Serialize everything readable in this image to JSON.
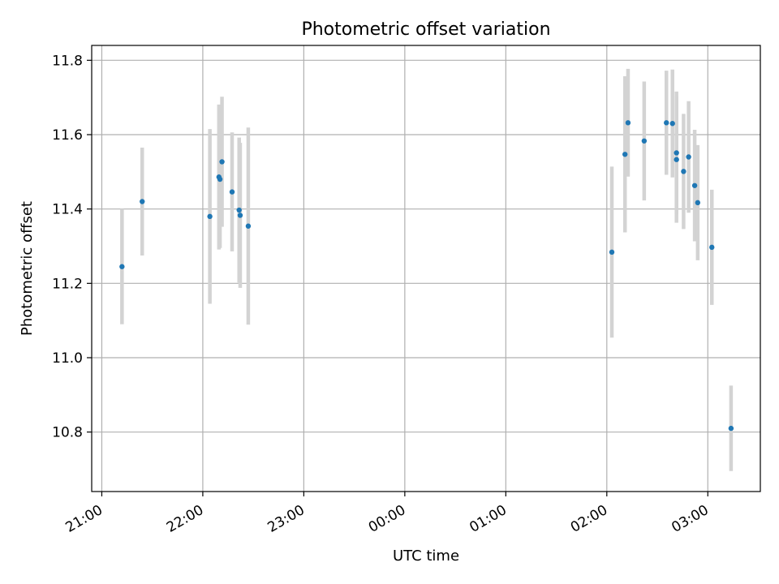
{
  "chart_data": {
    "type": "scatter",
    "title": "Photometric offset variation",
    "xlabel": "UTC time",
    "ylabel": "Photometric offset",
    "x_ticks": [
      "21:00",
      "22:00",
      "23:00",
      "00:00",
      "01:00",
      "02:00",
      "03:00"
    ],
    "x_tick_hours": [
      0,
      1,
      2,
      3,
      4,
      5,
      6
    ],
    "x_range_hours": [
      -0.1,
      6.52
    ],
    "y_ticks": [
      "10.8",
      "11.0",
      "11.2",
      "11.4",
      "11.6",
      "11.8"
    ],
    "y_tick_values": [
      10.8,
      11.0,
      11.2,
      11.4,
      11.6,
      11.8
    ],
    "ylim": [
      10.64,
      11.84
    ],
    "grid": true,
    "colors": {
      "point": "#1f77b4",
      "errorbar": "#d3d3d3",
      "grid": "#b0b0b0"
    },
    "points": [
      {
        "t": 0.2,
        "y": 11.245,
        "err": 0.155
      },
      {
        "t": 0.4,
        "y": 11.42,
        "err": 0.145
      },
      {
        "t": 1.07,
        "y": 11.38,
        "err": 0.235
      },
      {
        "t": 1.16,
        "y": 11.486,
        "err": 0.195
      },
      {
        "t": 1.17,
        "y": 11.48,
        "err": 0.185
      },
      {
        "t": 1.19,
        "y": 11.527,
        "err": 0.175
      },
      {
        "t": 1.29,
        "y": 11.446,
        "err": 0.16
      },
      {
        "t": 1.36,
        "y": 11.397,
        "err": 0.195
      },
      {
        "t": 1.37,
        "y": 11.383,
        "err": 0.195
      },
      {
        "t": 1.45,
        "y": 11.354,
        "err": 0.265
      },
      {
        "t": 5.05,
        "y": 11.284,
        "err": 0.23
      },
      {
        "t": 5.18,
        "y": 11.547,
        "err": 0.21
      },
      {
        "t": 5.21,
        "y": 11.632,
        "err": 0.145
      },
      {
        "t": 5.37,
        "y": 11.583,
        "err": 0.16
      },
      {
        "t": 5.59,
        "y": 11.632,
        "err": 0.14
      },
      {
        "t": 5.65,
        "y": 11.63,
        "err": 0.145
      },
      {
        "t": 5.69,
        "y": 11.551,
        "err": 0.165
      },
      {
        "t": 5.69,
        "y": 11.533,
        "err": 0.17
      },
      {
        "t": 5.76,
        "y": 11.501,
        "err": 0.155
      },
      {
        "t": 5.81,
        "y": 11.54,
        "err": 0.15
      },
      {
        "t": 5.87,
        "y": 11.463,
        "err": 0.15
      },
      {
        "t": 5.9,
        "y": 11.417,
        "err": 0.155
      },
      {
        "t": 6.04,
        "y": 11.297,
        "err": 0.155
      },
      {
        "t": 6.23,
        "y": 10.81,
        "err": 0.115
      }
    ]
  }
}
